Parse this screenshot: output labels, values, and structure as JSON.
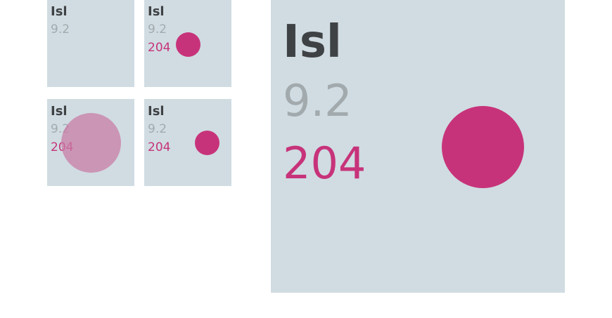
{
  "tiles": [
    {
      "code": "Isl",
      "rating": "9.2",
      "count": ""
    },
    {
      "code": "Isl",
      "rating": "9.2",
      "count": "204"
    },
    {
      "code": "Isl",
      "rating": "9.2",
      "count": "204"
    },
    {
      "code": "Isl",
      "rating": "9.2",
      "count": "204"
    }
  ],
  "detail": {
    "code": "Isl",
    "rating": "9.2",
    "count": "204"
  },
  "colors": {
    "tile_background": "#d0dce2",
    "accent": "#c7337a",
    "accent_faded": "#c97aa3",
    "code_text": "#3f4244",
    "rating_text": "#a2aaae"
  }
}
